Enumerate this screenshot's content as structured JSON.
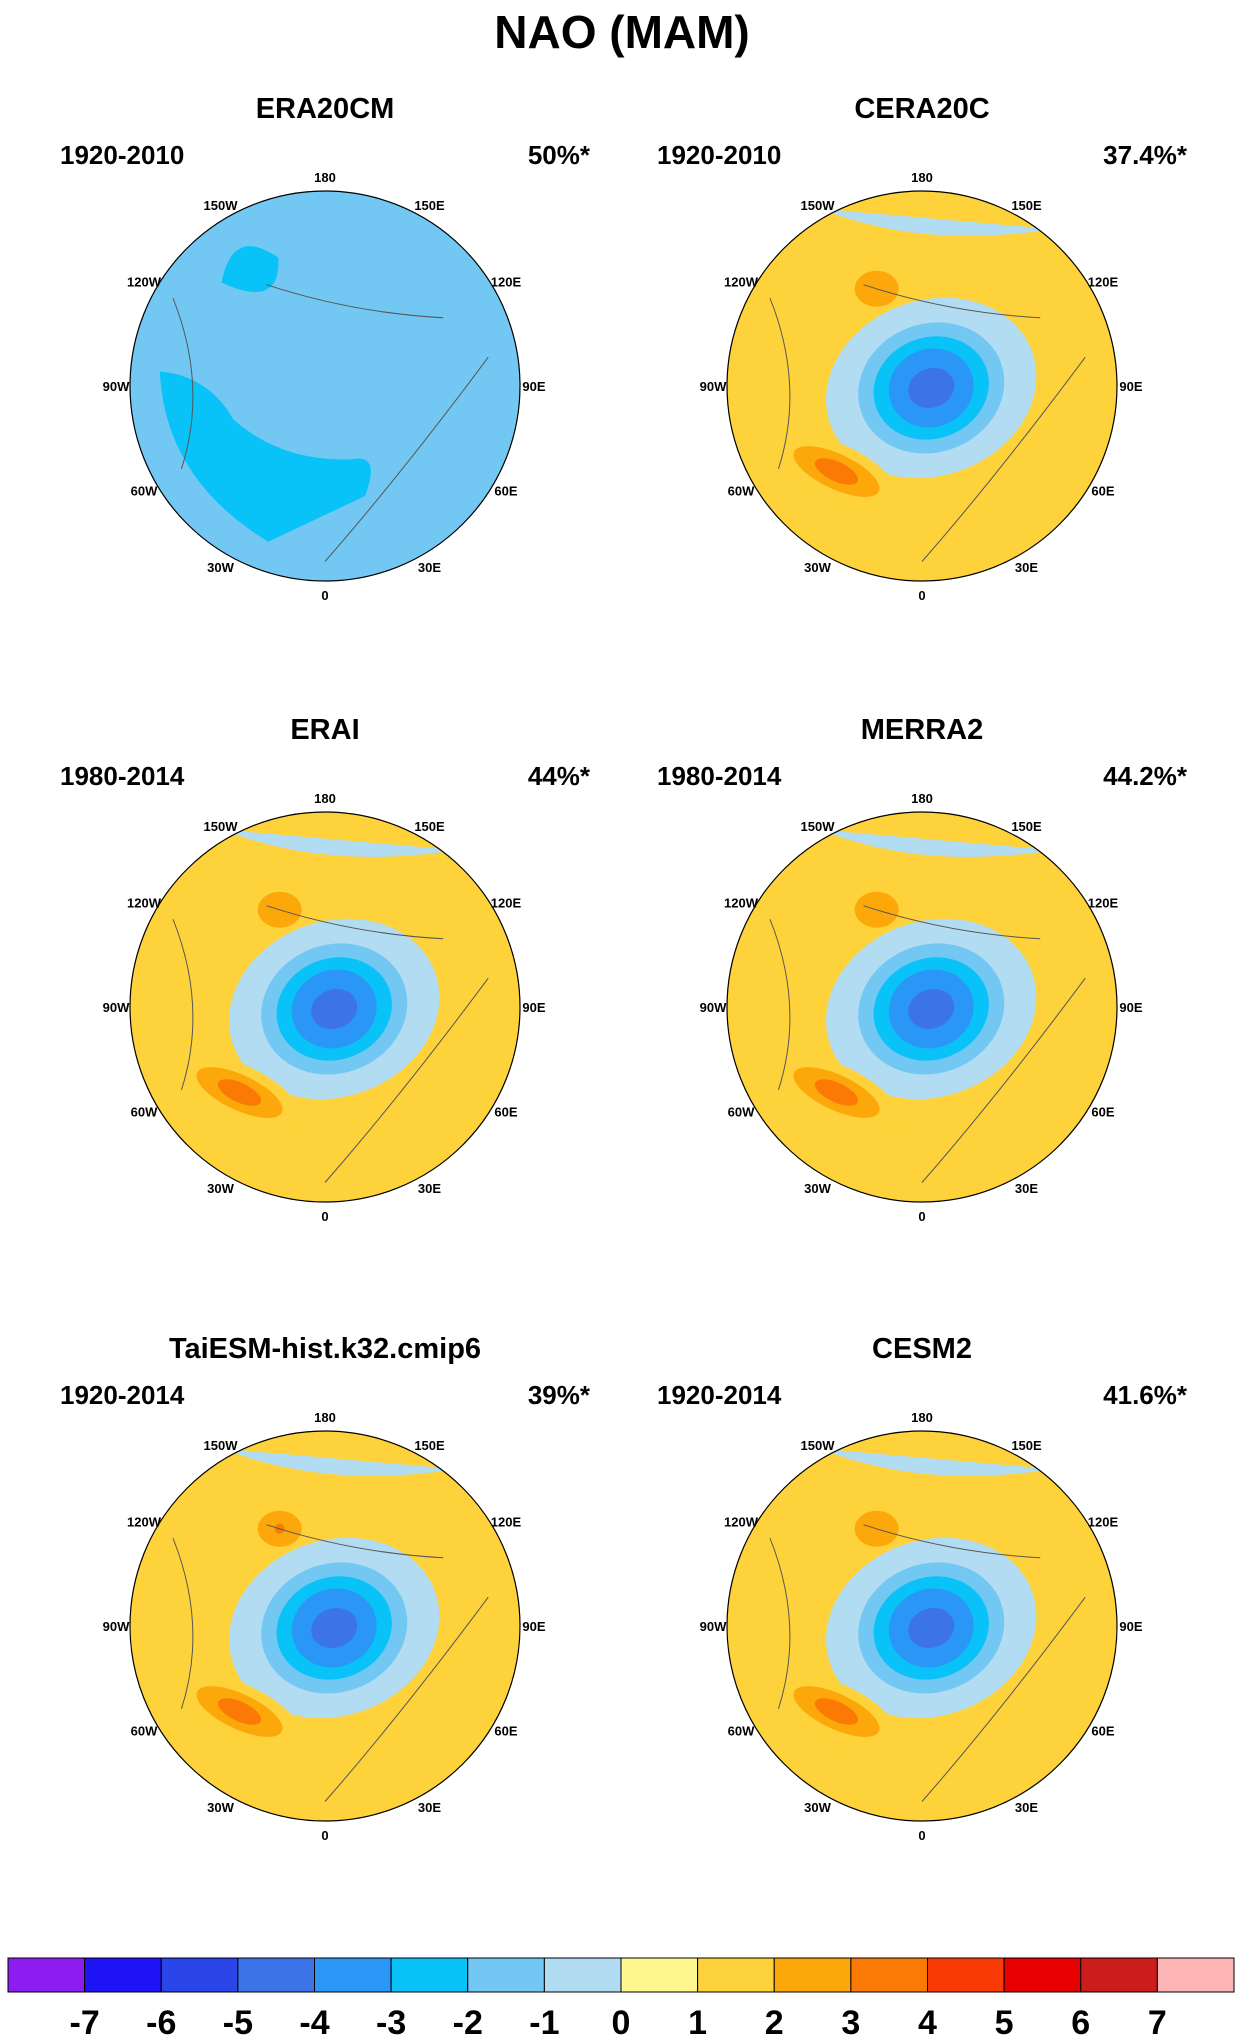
{
  "title": "NAO (MAM)",
  "chart_data": [
    {
      "type": "heatmap",
      "title": "ERA20CM",
      "period": "1920-2010",
      "variance_explained": "50%*",
      "pattern": {
        "centers": [],
        "base": -2,
        "bands": [
          {
            "level": -3,
            "shape": "pacific-patch"
          },
          {
            "level": -3,
            "shape": "atlantic-arc"
          }
        ]
      }
    },
    {
      "type": "heatmap",
      "title": "CERA20C",
      "period": "1920-2010",
      "variance_explained": "37.4%*",
      "pattern": {
        "base": 1,
        "pacific": -1,
        "arctic_min": -5,
        "atlantic_max": 3,
        "alaska_max": 2
      }
    },
    {
      "type": "heatmap",
      "title": "ERAI",
      "period": "1980-2014",
      "variance_explained": "44%*",
      "pattern": {
        "base": 1,
        "pacific": -1,
        "arctic_min": -5,
        "atlantic_max": 3,
        "alaska_max": 2
      }
    },
    {
      "type": "heatmap",
      "title": "MERRA2",
      "period": "1980-2014",
      "variance_explained": "44.2%*",
      "pattern": {
        "base": 1,
        "pacific": -1,
        "arctic_min": -5,
        "atlantic_max": 3,
        "alaska_max": 2
      }
    },
    {
      "type": "heatmap",
      "title": "TaiESM-hist.k32.cmip6",
      "period": "1920-2014",
      "variance_explained": "39%*",
      "pattern": {
        "base": 1,
        "pacific": -1,
        "arctic_min": -5,
        "atlantic_max": 3,
        "alaska_max": 3
      }
    },
    {
      "type": "heatmap",
      "title": "CESM2",
      "period": "1920-2014",
      "variance_explained": "41.6%*",
      "pattern": {
        "base": 1,
        "pacific": -1,
        "arctic_min": -5,
        "atlantic_max": 3,
        "alaska_max": 2
      }
    }
  ],
  "longitude_labels": [
    "180",
    "150E",
    "120E",
    "90E",
    "60E",
    "30E",
    "0",
    "30W",
    "60W",
    "90W",
    "120W",
    "150W"
  ],
  "colorbar": {
    "labels": [
      "-7",
      "-6",
      "-5",
      "-4",
      "-3",
      "-2",
      "-1",
      "0",
      "1",
      "2",
      "3",
      "4",
      "5",
      "6",
      "7"
    ],
    "colors": [
      "#8c1cf0",
      "#1e14f5",
      "#2a45e8",
      "#3c73e6",
      "#2a96f5",
      "#08c2f8",
      "#72c8f2",
      "#b2dcf2",
      "#fef78e",
      "#fed23a",
      "#fda80a",
      "#fa7a05",
      "#fa3a05",
      "#e60000",
      "#cc1c1c",
      "#fcb4b4"
    ]
  }
}
